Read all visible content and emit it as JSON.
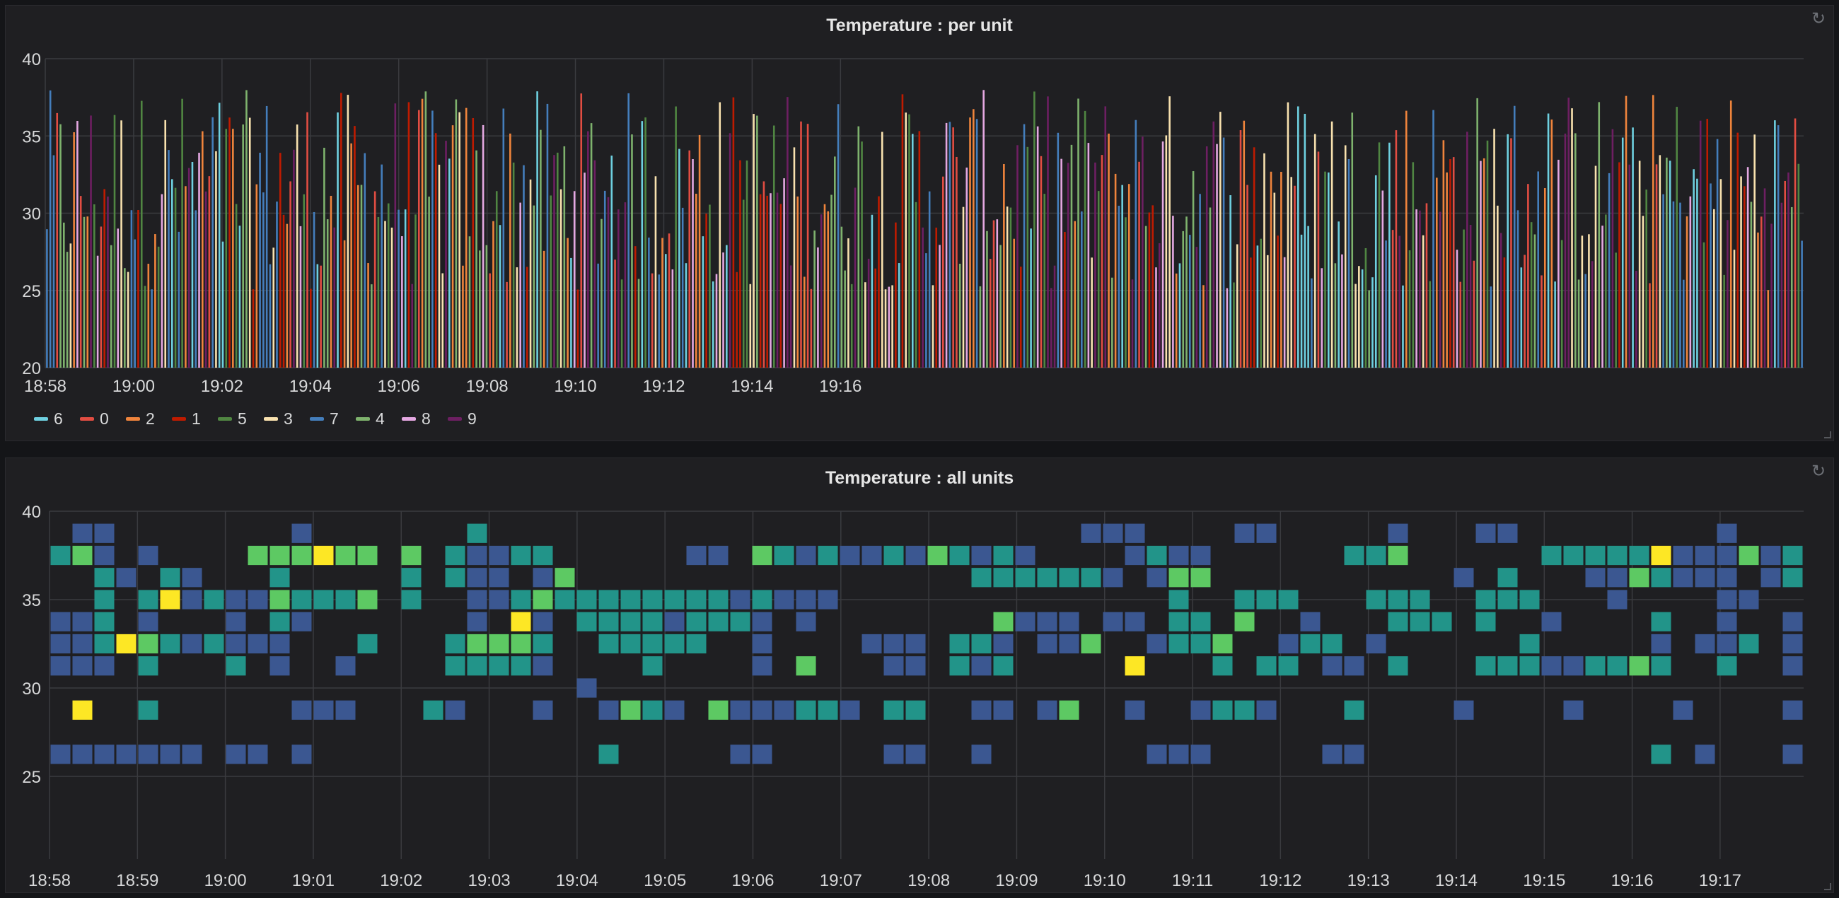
{
  "panels": {
    "top": {
      "title": "Temperature : per unit"
    },
    "bottom": {
      "title": "Temperature : all units"
    }
  },
  "chart_data": [
    {
      "type": "bar",
      "title": "Temperature : per unit",
      "ylim": [
        20,
        40
      ],
      "y_ticks": [
        "20",
        "25",
        "30",
        "35",
        "40"
      ],
      "x_range_min": [
        0,
        39.8
      ],
      "x_ticks": [
        {
          "label": "18:58",
          "t": 0
        },
        {
          "label": "19:00",
          "t": 2
        },
        {
          "label": "19:02",
          "t": 4
        },
        {
          "label": "19:04",
          "t": 6
        },
        {
          "label": "19:06",
          "t": 8
        },
        {
          "label": "19:08",
          "t": 10
        },
        {
          "label": "19:10",
          "t": 12
        },
        {
          "label": "19:12",
          "t": 14
        },
        {
          "label": "19:14",
          "t": 16
        },
        {
          "label": "19:16",
          "t": 18
        }
      ],
      "grid": true,
      "legend_position": "bottom-left",
      "series_style": "dense thin bars, about 520 bars, one sample roughly every 2.3 seconds, values between 25 and 38",
      "series": [
        {
          "name": "6",
          "color": "#6ed0e0"
        },
        {
          "name": "0",
          "color": "#e24d42"
        },
        {
          "name": "2",
          "color": "#ef843c"
        },
        {
          "name": "1",
          "color": "#bf1b00"
        },
        {
          "name": "5",
          "color": "#508642"
        },
        {
          "name": "3",
          "color": "#f9e2af"
        },
        {
          "name": "7",
          "color": "#447ebc"
        },
        {
          "name": "4",
          "color": "#7eb26d"
        },
        {
          "name": "8",
          "color": "#e5a8e2"
        },
        {
          "name": "9",
          "color": "#6d1f62"
        }
      ]
    },
    {
      "type": "heatmap",
      "title": "Temperature : all units",
      "ylim": [
        22,
        40
      ],
      "y_ticks": [
        "25",
        "30",
        "35",
        "40"
      ],
      "bucket_size": 1.25,
      "x_ticks": [
        {
          "label": "18:58",
          "t": 0
        },
        {
          "label": "18:59",
          "t": 1
        },
        {
          "label": "19:00",
          "t": 2
        },
        {
          "label": "19:01",
          "t": 3
        },
        {
          "label": "19:02",
          "t": 4
        },
        {
          "label": "19:03",
          "t": 5
        },
        {
          "label": "19:04",
          "t": 6
        },
        {
          "label": "19:05",
          "t": 7
        },
        {
          "label": "19:06",
          "t": 8
        },
        {
          "label": "19:07",
          "t": 9
        },
        {
          "label": "19:08",
          "t": 10
        },
        {
          "label": "19:09",
          "t": 11
        },
        {
          "label": "19:10",
          "t": 12
        },
        {
          "label": "19:11",
          "t": 13
        },
        {
          "label": "19:12",
          "t": 14
        },
        {
          "label": "19:13",
          "t": 15
        },
        {
          "label": "19:14",
          "t": 16
        },
        {
          "label": "19:15",
          "t": 17
        },
        {
          "label": "19:16",
          "t": 18
        },
        {
          "label": "19:17",
          "t": 19
        }
      ],
      "colors": {
        "1": "#3b5791",
        "2": "#229489",
        "3": "#5dc963",
        "4": "#fde725"
      },
      "rows_y": [
        38.75,
        37.5,
        36.25,
        35,
        33.75,
        32.5,
        31.25,
        30,
        28.75,
        27.5,
        26.25,
        25
      ],
      "grid_rows_top_to_bottom": [
        "01100000000100000002000000000000000000000000000111000011000001000110000000001000",
        "23101000033343303021122000000110321211213212100001211000000223000000222224111312",
        "00210210002000002021101300000000000000000022222210133000000000001020001132111012",
        "00202412113222302001123222222221211100000000000000020022200022200222000100001100",
        "11201000102100000001041022221222101000000003111011022030010002220200100002001001",
        "11243212111000200023332002222200100001110221011300122300122010000002000001011201",
        "11102000201001000022221000020000103000110212000004000202201102000222112232002001",
        "00000000000000000000000010000000000000000000000000000000000000000000000000000000",
        "04002000000111000210001001321031112210220011013001001221000200001000010000100001",
        "00000000000000000000000000000000000000000000000000000000000000000000000000000000",
        "11111110110100000000000002000001100000110010000000111000001100000000000002010001",
        "00000000000000000000000000000000000000000000000000000000000000000000000000000000"
      ]
    }
  ]
}
